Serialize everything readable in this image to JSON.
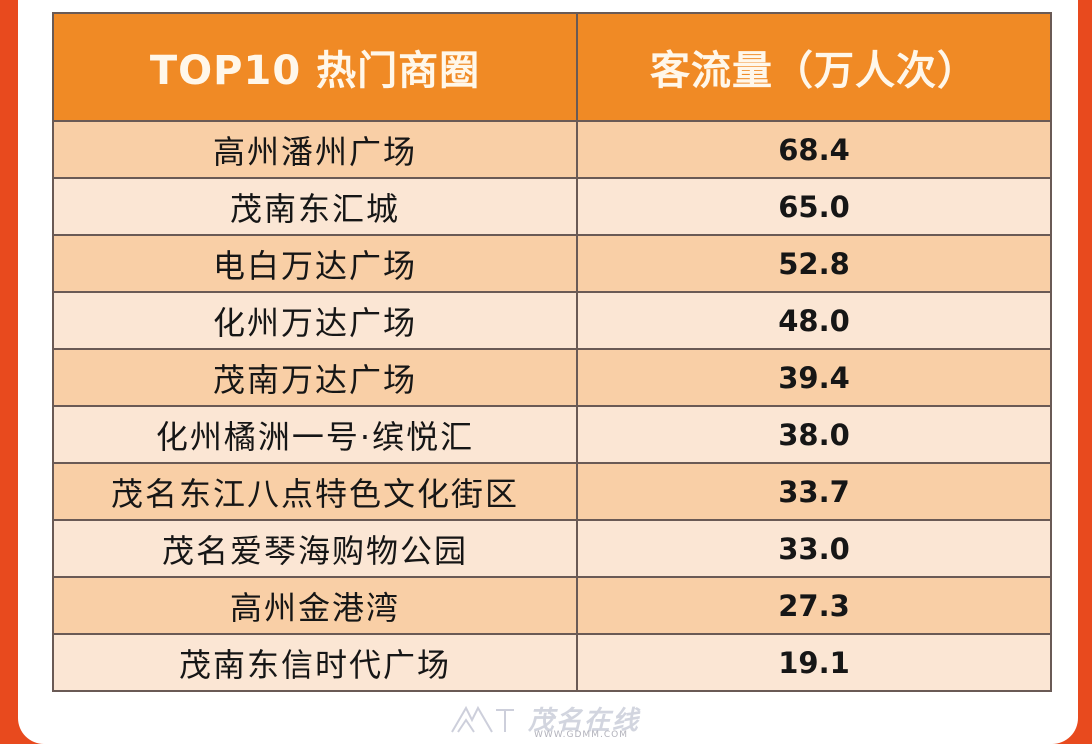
{
  "table": {
    "headers": [
      "TOP10 热门商圈",
      "客流量（万人次）"
    ],
    "rows": [
      {
        "name": "高州潘州广场",
        "value": "68.4"
      },
      {
        "name": "茂南东汇城",
        "value": "65.0"
      },
      {
        "name": "电白万达广场",
        "value": "52.8"
      },
      {
        "name": "化州万达广场",
        "value": "48.0"
      },
      {
        "name": "茂南万达广场",
        "value": "39.4"
      },
      {
        "name": "化州橘洲一号·缤悦汇",
        "value": "38.0"
      },
      {
        "name": "茂名东江八点特色文化街区",
        "value": "33.7"
      },
      {
        "name": "茂名爱琴海购物公园",
        "value": "33.0"
      },
      {
        "name": "高州金港湾",
        "value": "27.3"
      },
      {
        "name": "茂南东信时代广场",
        "value": "19.1"
      }
    ]
  },
  "watermark": {
    "brand_text": "茂名在线",
    "url": "WWW.GDMM.COM",
    "icon": "watermark-logo-icon"
  },
  "colors": {
    "header_bg": "#f08a25",
    "row_odd": "#f9cfa6",
    "row_even": "#fbe6d4",
    "frame": "#e84a1e"
  }
}
